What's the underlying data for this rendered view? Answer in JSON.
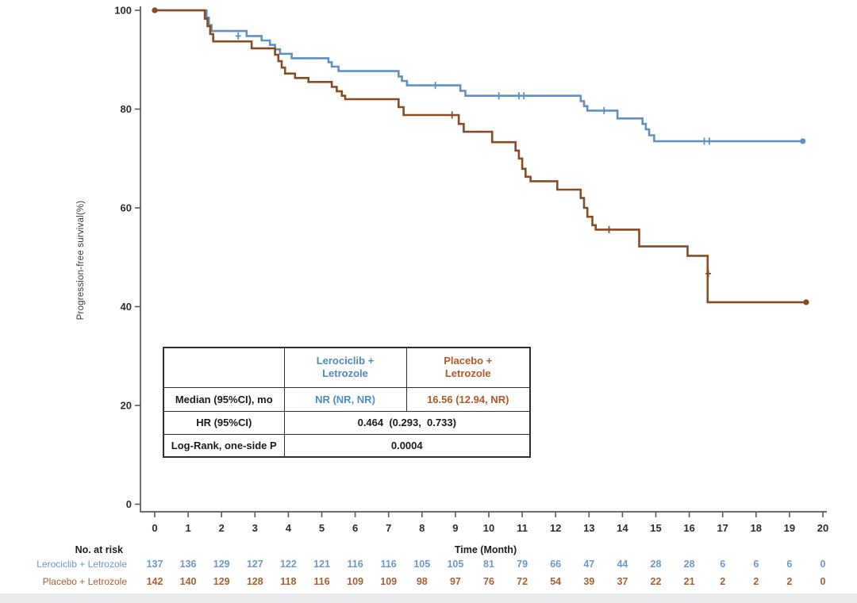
{
  "colors": {
    "lerociclib_line": "#6090c2",
    "placebo_line": "#8a4a22",
    "lerociclib_text": "#6c98cb",
    "placebo_text": "#aa5f31",
    "axis": "#58595b"
  },
  "chart_data": {
    "type": "line",
    "subtype": "kaplan_meier_step",
    "title": "",
    "xlabel": "Time (Month)",
    "ylabel": "Progression-free survival(%)",
    "xlim": [
      0,
      20
    ],
    "ylim": [
      0,
      100
    ],
    "xticks": [
      0,
      1,
      2,
      3,
      4,
      5,
      6,
      7,
      8,
      9,
      10,
      11,
      12,
      13,
      14,
      15,
      16,
      17,
      18,
      19,
      20
    ],
    "yticks": [
      0,
      20,
      40,
      60,
      80,
      100
    ],
    "grid": false,
    "series": [
      {
        "name": "Lerociclib + Letrozole",
        "color": "#6090c2",
        "steps": [
          [
            0,
            100
          ],
          [
            1.55,
            98.5
          ],
          [
            1.62,
            97.0
          ],
          [
            1.7,
            95.8
          ],
          [
            2.75,
            94.8
          ],
          [
            3.2,
            93.9
          ],
          [
            3.45,
            93.0
          ],
          [
            3.6,
            92.1
          ],
          [
            3.75,
            91.2
          ],
          [
            4.1,
            90.3
          ],
          [
            5.2,
            89.5
          ],
          [
            5.3,
            88.6
          ],
          [
            5.5,
            87.7
          ],
          [
            7.3,
            86.6
          ],
          [
            7.4,
            85.7
          ],
          [
            7.55,
            84.8
          ],
          [
            9.15,
            83.7
          ],
          [
            9.3,
            82.7
          ],
          [
            12.75,
            81.6
          ],
          [
            12.85,
            80.6
          ],
          [
            12.95,
            79.7
          ],
          [
            13.85,
            78.1
          ],
          [
            14.6,
            77.0
          ],
          [
            14.7,
            75.9
          ],
          [
            14.8,
            74.7
          ],
          [
            14.95,
            73.5
          ]
        ],
        "end_time": 19.4,
        "end_value": 73.5,
        "censors": [
          [
            2.5,
            94.8
          ],
          [
            8.4,
            84.8
          ],
          [
            10.3,
            82.7
          ],
          [
            10.9,
            82.7
          ],
          [
            11.05,
            82.7
          ],
          [
            13.45,
            79.7
          ],
          [
            16.45,
            73.5
          ],
          [
            16.6,
            73.5
          ]
        ],
        "start_marker": [
          0,
          100
        ],
        "end_marker": [
          19.4,
          73.5
        ]
      },
      {
        "name": "Placebo + Letrozole",
        "color": "#8a4a22",
        "steps": [
          [
            0,
            100
          ],
          [
            1.5,
            98.3
          ],
          [
            1.58,
            96.8
          ],
          [
            1.66,
            95.2
          ],
          [
            1.75,
            93.7
          ],
          [
            2.9,
            92.3
          ],
          [
            3.6,
            91.0
          ],
          [
            3.7,
            89.7
          ],
          [
            3.8,
            88.4
          ],
          [
            3.9,
            87.2
          ],
          [
            4.2,
            86.3
          ],
          [
            4.6,
            85.5
          ],
          [
            5.3,
            84.5
          ],
          [
            5.45,
            83.6
          ],
          [
            5.6,
            82.7
          ],
          [
            5.7,
            82.0
          ],
          [
            7.3,
            80.4
          ],
          [
            7.45,
            78.8
          ],
          [
            9.1,
            77.0
          ],
          [
            9.25,
            75.4
          ],
          [
            10.1,
            73.3
          ],
          [
            10.8,
            71.6
          ],
          [
            10.9,
            70.0
          ],
          [
            11.0,
            67.9
          ],
          [
            11.1,
            66.3
          ],
          [
            11.25,
            65.4
          ],
          [
            12.05,
            63.7
          ],
          [
            12.75,
            62.0
          ],
          [
            12.85,
            60.0
          ],
          [
            12.95,
            58.2
          ],
          [
            13.1,
            56.5
          ],
          [
            13.2,
            55.6
          ],
          [
            14.5,
            52.2
          ],
          [
            15.95,
            50.3
          ],
          [
            16.55,
            40.9
          ]
        ],
        "end_time": 19.5,
        "end_value": 40.9,
        "censors": [
          [
            8.9,
            78.8
          ],
          [
            13.6,
            55.6
          ],
          [
            16.57,
            46.7
          ]
        ],
        "start_marker": [
          0,
          100
        ],
        "end_marker": [
          19.5,
          40.9
        ]
      }
    ],
    "risk_table": {
      "title": "No. at risk",
      "months": [
        0,
        1,
        2,
        3,
        4,
        5,
        6,
        7,
        8,
        9,
        10,
        11,
        12,
        13,
        14,
        15,
        16,
        17,
        18,
        19,
        20
      ],
      "rows": [
        {
          "name": "Lerociclib + Letrozole",
          "color": "#6c98cb",
          "counts": [
            137,
            136,
            129,
            127,
            122,
            121,
            116,
            116,
            105,
            105,
            81,
            79,
            66,
            47,
            44,
            28,
            28,
            6,
            6,
            6,
            0
          ]
        },
        {
          "name": "Placebo + Letrozole",
          "color": "#aa5f31",
          "counts": [
            142,
            140,
            129,
            128,
            118,
            116,
            109,
            109,
            98,
            97,
            76,
            72,
            54,
            39,
            37,
            22,
            21,
            2,
            2,
            2,
            0
          ]
        }
      ]
    }
  },
  "stats_table": {
    "headers": {
      "col1": "",
      "lerociclib": "Lerociclib +\nLetrozole",
      "placebo": "Placebo +\nLetrozole"
    },
    "rows": {
      "median": {
        "label": "Median (95%CI), mo",
        "lerociclib": "NR (NR, NR)",
        "placebo": "16.56 (12.94, NR)"
      },
      "hr": {
        "label": "HR (95%CI)",
        "value": "0.464  (0.293,  0.733)"
      },
      "logrank": {
        "label": "Log-Rank, one-side P",
        "value": "0.0004"
      }
    }
  }
}
